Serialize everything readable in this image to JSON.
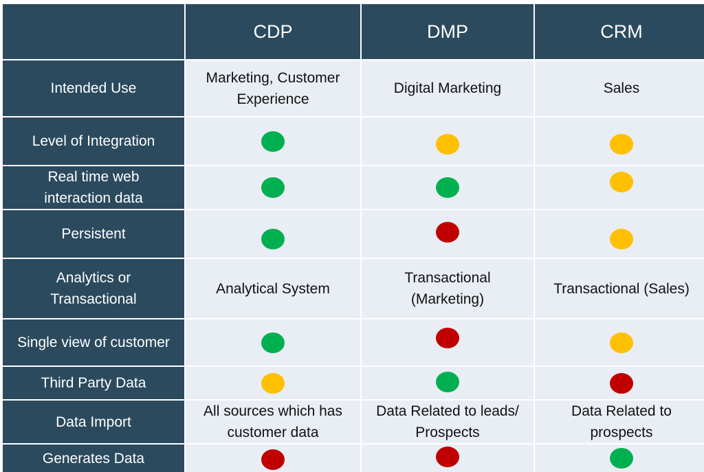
{
  "colors": {
    "header_bg": "#2b4a5e",
    "body_bg": "#e9edf4",
    "green": "#00b050",
    "yellow": "#ffc000",
    "red": "#c00000"
  },
  "header": [
    "",
    "CDP",
    "DMP",
    "CRM"
  ],
  "rows": [
    {
      "label": "Intended Use",
      "cells": [
        {
          "kind": "text",
          "text": "Marketing,  Customer\nExperience"
        },
        {
          "kind": "text",
          "text": "Digital Marketing"
        },
        {
          "kind": "text",
          "text": "Sales"
        }
      ]
    },
    {
      "label": "Level of Integration",
      "cells": [
        {
          "kind": "dot",
          "status": "green"
        },
        {
          "kind": "dot",
          "status": "yellow"
        },
        {
          "kind": "dot",
          "status": "yellow"
        }
      ]
    },
    {
      "label": "Real time web\ninteraction data",
      "cells": [
        {
          "kind": "dot",
          "status": "green"
        },
        {
          "kind": "dot",
          "status": "green"
        },
        {
          "kind": "dot",
          "status": "yellow"
        }
      ]
    },
    {
      "label": "Persistent",
      "cells": [
        {
          "kind": "dot",
          "status": "green"
        },
        {
          "kind": "dot",
          "status": "red"
        },
        {
          "kind": "dot",
          "status": "yellow"
        }
      ]
    },
    {
      "label": "Analytics or\nTransactional",
      "cells": [
        {
          "kind": "text",
          "text": "Analytical System"
        },
        {
          "kind": "text",
          "text": "Transactional\n(Marketing)"
        },
        {
          "kind": "text",
          "text": "Transactional (Sales)"
        }
      ]
    },
    {
      "label": "Single view of customer",
      "cells": [
        {
          "kind": "dot",
          "status": "green"
        },
        {
          "kind": "dot",
          "status": "red"
        },
        {
          "kind": "dot",
          "status": "yellow"
        }
      ]
    },
    {
      "label": "Third Party Data",
      "cells": [
        {
          "kind": "dot",
          "status": "yellow"
        },
        {
          "kind": "dot",
          "status": "green"
        },
        {
          "kind": "dot",
          "status": "red"
        }
      ]
    },
    {
      "label": "Data Import",
      "cells": [
        {
          "kind": "text",
          "text": "All sources which has\ncustomer data"
        },
        {
          "kind": "text",
          "text": "Data Related to leads/\nProspects"
        },
        {
          "kind": "text",
          "text": "Data Related to\nprospects"
        }
      ]
    },
    {
      "label": "Generates Data",
      "cells": [
        {
          "kind": "dot",
          "status": "red"
        },
        {
          "kind": "dot",
          "status": "red"
        },
        {
          "kind": "dot",
          "status": "green"
        }
      ]
    }
  ]
}
